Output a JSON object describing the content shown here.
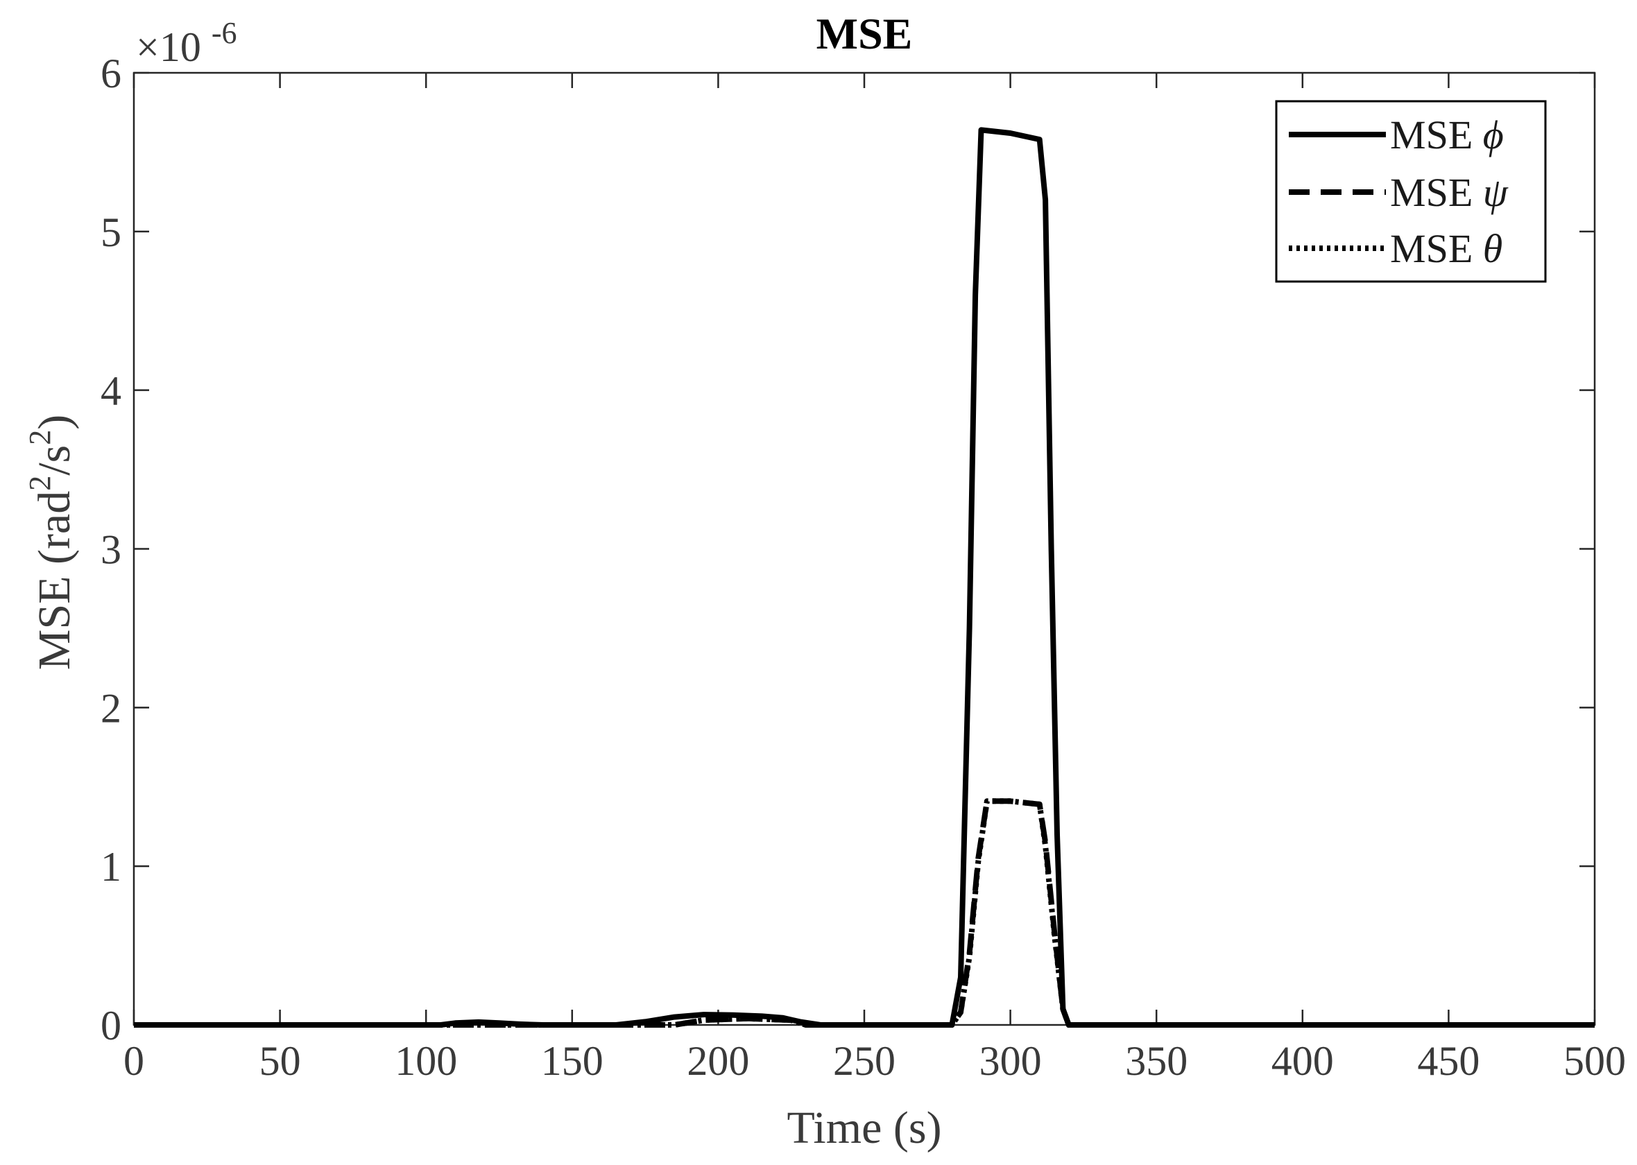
{
  "chart_data": {
    "type": "line",
    "title": "MSE",
    "xlabel": "Time (s)",
    "ylabel": {
      "prefix": "MSE (rad",
      "sup1": "2",
      "middle": "/s",
      "sup2": "2",
      "suffix": ")"
    },
    "exponent": {
      "base": "×10",
      "power": "-6"
    },
    "xlim": [
      0,
      500
    ],
    "ylim": [
      0,
      6
    ],
    "xticks": [
      0,
      50,
      100,
      150,
      200,
      250,
      300,
      350,
      400,
      450,
      500
    ],
    "yticks": [
      0,
      1,
      2,
      3,
      4,
      5,
      6
    ],
    "grid": false,
    "legend_position": "top-right",
    "series": [
      {
        "name": "MSE ϕ",
        "legend_prefix": "MSE ",
        "legend_symbol": "ϕ",
        "style": "solid",
        "color": "#000000",
        "x": [
          0,
          105,
          110,
          118,
          125,
          132,
          140,
          165,
          175,
          185,
          195,
          205,
          215,
          222,
          228,
          235,
          280,
          283,
          286,
          288,
          290,
          300,
          310,
          312,
          314,
          316,
          318,
          320,
          500
        ],
        "y": [
          0,
          0,
          0.012,
          0.018,
          0.012,
          0.005,
          0,
          0,
          0.02,
          0.05,
          0.065,
          0.062,
          0.055,
          0.045,
          0.02,
          0,
          0,
          0.3,
          2.5,
          4.6,
          5.64,
          5.62,
          5.58,
          5.2,
          3.0,
          1.2,
          0.1,
          0,
          0
        ]
      },
      {
        "name": "MSE ψ",
        "legend_prefix": "MSE ",
        "legend_symbol": "ψ",
        "style": "dashed",
        "color": "#000000",
        "x": [
          0,
          185,
          195,
          210,
          225,
          230,
          280,
          283,
          286,
          289,
          292,
          300,
          310,
          312,
          315,
          318,
          320,
          500
        ],
        "y": [
          0,
          0,
          0.03,
          0.04,
          0.03,
          0,
          0,
          0.08,
          0.45,
          1.05,
          1.41,
          1.41,
          1.39,
          1.15,
          0.6,
          0.1,
          0,
          0
        ]
      },
      {
        "name": "MSE θ",
        "legend_prefix": "MSE ",
        "legend_symbol": "θ",
        "style": "dotted",
        "color": "#000000",
        "x": [
          0,
          185,
          195,
          210,
          225,
          230,
          280,
          283,
          286,
          289,
          292,
          300,
          310,
          312,
          315,
          318,
          320,
          500
        ],
        "y": [
          0,
          0,
          0.03,
          0.04,
          0.03,
          0,
          0,
          0.08,
          0.43,
          1.03,
          1.41,
          1.41,
          1.39,
          1.13,
          0.58,
          0.1,
          0,
          0
        ]
      }
    ]
  }
}
